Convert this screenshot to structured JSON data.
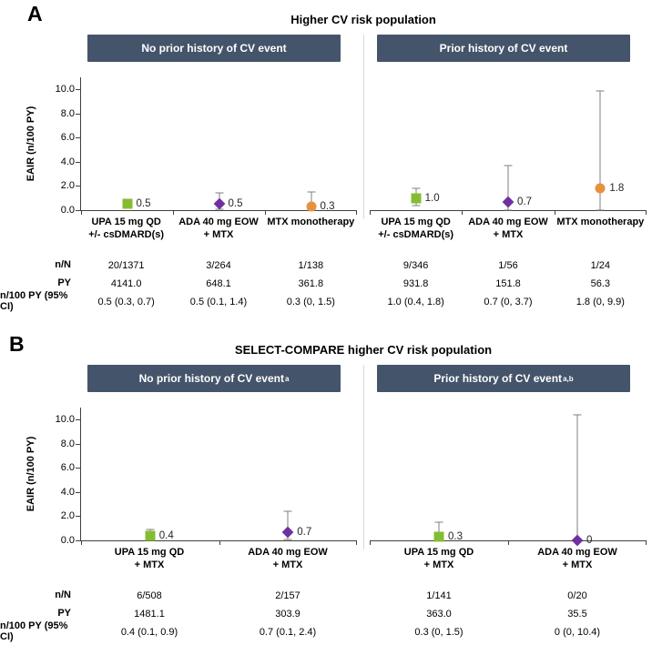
{
  "colors": {
    "header_bg": "#44546A",
    "upa_green": "#84BD32",
    "ada_purple": "#7030A0",
    "mtx_orange": "#E8913D",
    "error_bar": "#7F7F7F",
    "axis": "#404040",
    "divider": "#D9D9D9"
  },
  "chart_data": {
    "type": "scatter",
    "ylabel": "EAIR (n/100 PY)",
    "ylim": [
      0,
      11
    ],
    "yticks": [
      0,
      2,
      4,
      6,
      8,
      10
    ],
    "ytick_labels": [
      "0.0",
      "2.0",
      "4.0",
      "6.0",
      "8.0",
      "10.0"
    ],
    "grid": "off",
    "row_labels": [
      "n/N",
      "PY",
      "n/100 PY (95% CI)"
    ],
    "panels": [
      {
        "letter": "A",
        "title": "Higher CV risk population",
        "subplots": [
          {
            "header": "No prior history of CV event",
            "header_sup": "",
            "categories": [
              [
                "UPA 15 mg QD",
                "+/- csDMARD(s)"
              ],
              [
                "ADA 40 mg EOW",
                "+ MTX"
              ],
              [
                "MTX monotherapy"
              ]
            ],
            "points": [
              {
                "series": "UPA 15 mg QD +/- csDMARD(s)",
                "marker": "square",
                "color": "upa_green",
                "value": 0.5,
                "lo": 0.3,
                "hi": 0.7,
                "label": "0.5"
              },
              {
                "series": "ADA 40 mg EOW + MTX",
                "marker": "diamond",
                "color": "ada_purple",
                "value": 0.5,
                "lo": 0.1,
                "hi": 1.4,
                "label": "0.5"
              },
              {
                "series": "MTX monotherapy",
                "marker": "circle",
                "color": "mtx_orange",
                "value": 0.3,
                "lo": 0,
                "hi": 1.5,
                "label": "0.3"
              }
            ],
            "table": [
              [
                "20/1371",
                "3/264",
                "1/138"
              ],
              [
                "4141.0",
                "648.1",
                "361.8"
              ],
              [
                "0.5 (0.3, 0.7)",
                "0.5 (0.1, 1.4)",
                "0.3 (0, 1.5)"
              ]
            ]
          },
          {
            "header": "Prior history of CV event",
            "header_sup": "",
            "categories": [
              [
                "UPA 15 mg QD",
                "+/- csDMARD(s)"
              ],
              [
                "ADA 40 mg EOW",
                "+ MTX"
              ],
              [
                "MTX monotherapy"
              ]
            ],
            "points": [
              {
                "series": "UPA 15 mg QD +/- csDMARD(s)",
                "marker": "square",
                "color": "upa_green",
                "value": 1.0,
                "lo": 0.4,
                "hi": 1.8,
                "label": "1.0"
              },
              {
                "series": "ADA 40 mg EOW + MTX",
                "marker": "diamond",
                "color": "ada_purple",
                "value": 0.7,
                "lo": 0,
                "hi": 3.7,
                "label": "0.7"
              },
              {
                "series": "MTX monotherapy",
                "marker": "circle",
                "color": "mtx_orange",
                "value": 1.8,
                "lo": 0,
                "hi": 9.9,
                "label": "1.8"
              }
            ],
            "table": [
              [
                "9/346",
                "1/56",
                "1/24"
              ],
              [
                "931.8",
                "151.8",
                "56.3"
              ],
              [
                "1.0 (0.4, 1.8)",
                "0.7 (0, 3.7)",
                "1.8 (0, 9.9)"
              ]
            ]
          }
        ]
      },
      {
        "letter": "B",
        "title": "SELECT-COMPARE higher CV risk population",
        "subplots": [
          {
            "header": "No prior history of CV event",
            "header_sup": "a",
            "categories": [
              [
                "UPA 15 mg QD",
                "+ MTX"
              ],
              [
                "ADA 40 mg EOW",
                "+ MTX"
              ]
            ],
            "points": [
              {
                "series": "UPA 15 mg QD + MTX",
                "marker": "square",
                "color": "upa_green",
                "value": 0.4,
                "lo": 0.1,
                "hi": 0.9,
                "label": "0.4"
              },
              {
                "series": "ADA 40 mg EOW + MTX",
                "marker": "diamond",
                "color": "ada_purple",
                "value": 0.7,
                "lo": 0.1,
                "hi": 2.4,
                "label": "0.7"
              }
            ],
            "table": [
              [
                "6/508",
                "2/157"
              ],
              [
                "1481.1",
                "303.9"
              ],
              [
                "0.4 (0.1, 0.9)",
                "0.7 (0.1, 2.4)"
              ]
            ]
          },
          {
            "header": "Prior history of CV event",
            "header_sup": "a,b",
            "categories": [
              [
                "UPA 15 mg QD",
                "+ MTX"
              ],
              [
                "ADA 40 mg EOW",
                "+ MTX"
              ]
            ],
            "points": [
              {
                "series": "UPA 15 mg QD + MTX",
                "marker": "square",
                "color": "upa_green",
                "value": 0.3,
                "lo": 0,
                "hi": 1.5,
                "label": "0.3"
              },
              {
                "series": "ADA 40 mg EOW + MTX",
                "marker": "diamond",
                "color": "ada_purple",
                "value": 0,
                "lo": 0,
                "hi": 10.4,
                "label": "0"
              }
            ],
            "table": [
              [
                "1/141",
                "0/20"
              ],
              [
                "363.0",
                "35.5"
              ],
              [
                "0.3 (0, 1.5)",
                "0 (0, 10.4)"
              ]
            ]
          }
        ]
      }
    ]
  }
}
